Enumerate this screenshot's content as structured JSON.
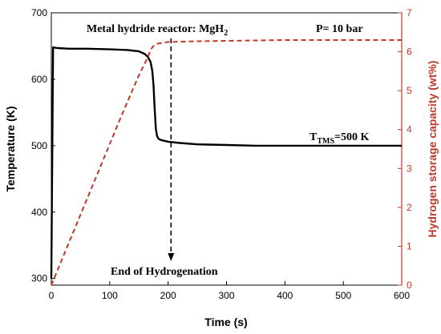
{
  "chart_data": {
    "type": "line",
    "title": "",
    "xlabel": "Time (s)",
    "ylabel_left": "Temperature (K)",
    "ylabel_right": "Hydrogen storage capacity (wt%)",
    "xlim": [
      0,
      600
    ],
    "ylim_left": [
      290,
      700
    ],
    "ylim_right": [
      0,
      7
    ],
    "x_ticks": [
      0,
      100,
      200,
      300,
      400,
      500,
      600
    ],
    "y_left_ticks": [
      300,
      400,
      500,
      600,
      700
    ],
    "y_right_ticks": [
      0,
      1,
      2,
      3,
      4,
      5,
      6,
      7
    ],
    "grid": false,
    "series": [
      {
        "axis": "left",
        "color": "#000000",
        "style": "solid",
        "x": [
          0,
          3,
          10,
          30,
          60,
          100,
          130,
          150,
          160,
          165,
          170,
          173,
          175,
          177,
          179,
          181,
          183,
          186,
          190,
          200,
          220,
          250,
          300,
          350,
          400,
          450,
          500,
          550,
          600
        ],
        "values": [
          300,
          648,
          647,
          646,
          646,
          645,
          644,
          642,
          638,
          634,
          626,
          612,
          590,
          555,
          525,
          515,
          511,
          509,
          508,
          506,
          504,
          502,
          501,
          500,
          500,
          500,
          500,
          500,
          500
        ]
      },
      {
        "axis": "right",
        "color": "#c0392b",
        "style": "dashed",
        "x": [
          0,
          40,
          80,
          120,
          150,
          165,
          170,
          175,
          180,
          190,
          200,
          250,
          300,
          350,
          400,
          500,
          600
        ],
        "values": [
          0.0,
          1.45,
          2.9,
          4.35,
          5.4,
          5.85,
          6.05,
          6.15,
          6.2,
          6.23,
          6.25,
          6.27,
          6.28,
          6.29,
          6.3,
          6.3,
          6.3
        ]
      }
    ],
    "annotations": {
      "reactor_prefix": "Metal hydride reactor: MgH",
      "reactor_sub": "2",
      "pressure": "P= 10 bar",
      "tms_main": "T",
      "tms_sub": "TMS",
      "tms_value": "=500 K",
      "end_label": "End of Hydrogenation",
      "arrow_x": 205
    }
  }
}
